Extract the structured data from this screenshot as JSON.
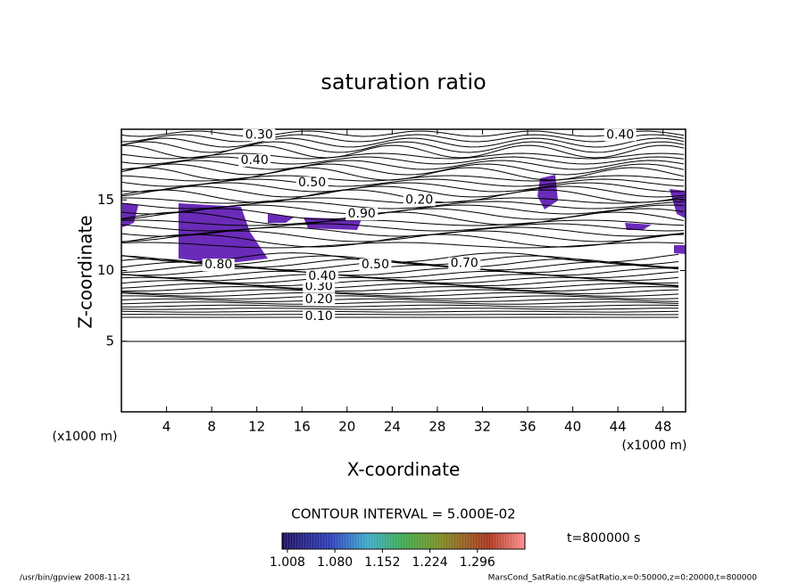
{
  "chart_data": {
    "type": "contour",
    "title": "saturation ratio",
    "x_label": "X-coordinate",
    "y_label": "Z-coordinate",
    "x_unit": "(x1000 m)",
    "y_unit": "(x1000 m)",
    "xlim": [
      0,
      50
    ],
    "xticks": [
      4,
      8,
      12,
      16,
      20,
      24,
      28,
      32,
      36,
      40,
      44,
      48
    ],
    "ylim": [
      0,
      20
    ],
    "yticks": [
      5,
      10,
      15
    ],
    "contour_interval": "CONTOUR INTERVAL = 5.000E-02",
    "time_label": "t=800000 s",
    "contour_labels": [
      {
        "value": 0.1,
        "label": "0.10",
        "x": 17.5,
        "z": 6.75
      },
      {
        "value": 0.2,
        "label": "0.20",
        "x": 17.5,
        "z": 7.95
      },
      {
        "value": 0.3,
        "label": "0.30",
        "x": 17.5,
        "z": 8.85
      },
      {
        "value": 0.4,
        "label": "0.40",
        "x": 17.8,
        "z": 9.6
      },
      {
        "value": 0.3,
        "label": "0.30",
        "x": 12.2,
        "z": 19.6
      },
      {
        "value": 0.4,
        "label": "0.40",
        "x": 11.8,
        "z": 17.8
      },
      {
        "value": 0.5,
        "label": "0.50",
        "x": 16.9,
        "z": 16.2
      },
      {
        "value": 0.4,
        "label": "0.40",
        "x": 44.2,
        "z": 19.6
      },
      {
        "value": 0.9,
        "label": "0.90",
        "x": 21.3,
        "z": 14.0
      },
      {
        "value": 0.2,
        "label": "0.20",
        "x": 26.4,
        "z": 15.0
      },
      {
        "value": 0.8,
        "label": "0.80",
        "x": 8.6,
        "z": 10.4
      },
      {
        "value": 0.5,
        "label": "0.50",
        "x": 22.5,
        "z": 10.4
      },
      {
        "value": 0.7,
        "label": "0.70",
        "x": 30.4,
        "z": 10.5
      }
    ],
    "colorbar": {
      "lim": [
        1.0,
        1.368
      ],
      "ticks": [
        {
          "value": 1.008,
          "label": "1.008"
        },
        {
          "value": 1.08,
          "label": "1.080"
        },
        {
          "value": 1.152,
          "label": "1.152"
        },
        {
          "value": 1.224,
          "label": "1.224"
        },
        {
          "value": 1.296,
          "label": "1.296"
        }
      ]
    },
    "footer_left": "/usr/bin/gpview   2008-11-21",
    "footer_right": "MarsCond_SatRatio.nc@SatRatio,x=0:50000,z=0:20000,t=800000"
  }
}
